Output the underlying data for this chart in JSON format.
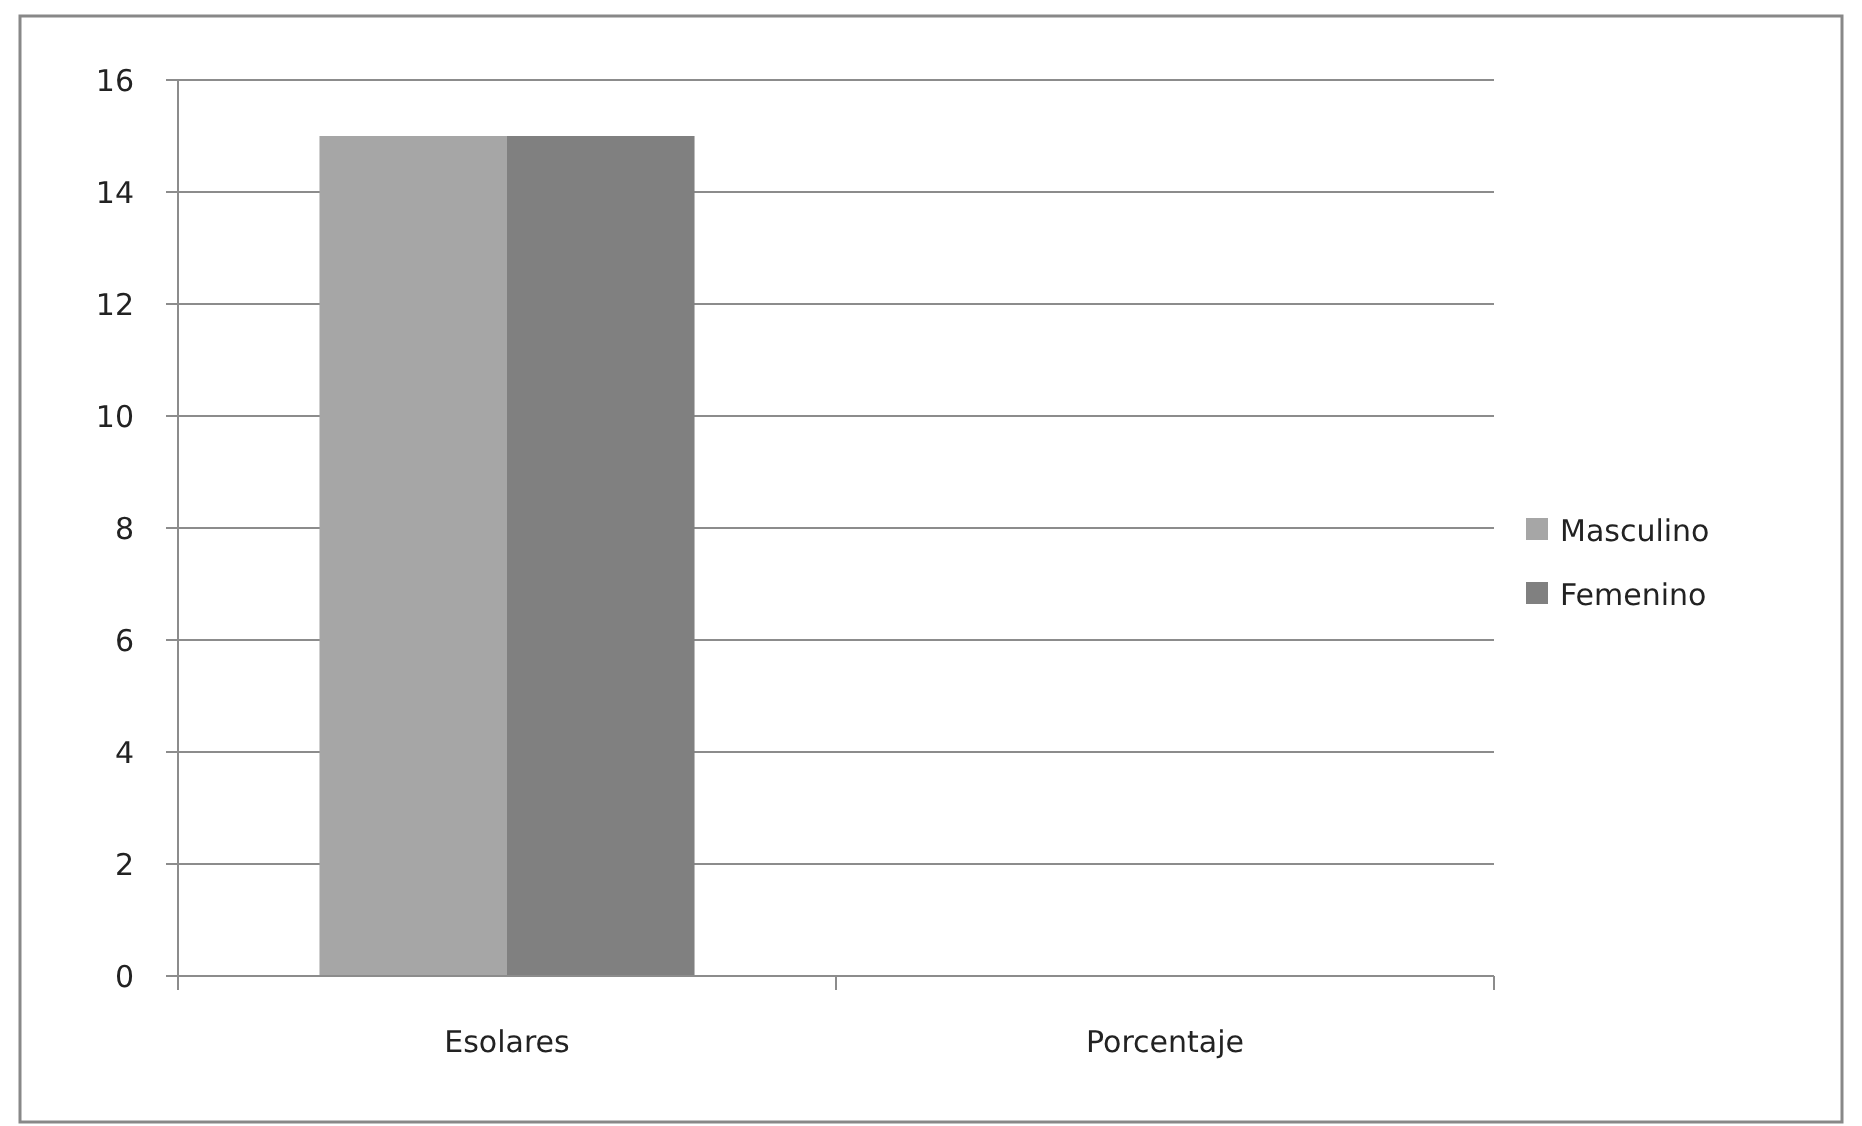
{
  "chart_data": {
    "type": "bar",
    "categories": [
      "Esolares",
      "Porcentaje"
    ],
    "series": [
      {
        "name": "Masculino",
        "color": "#a6a6a6",
        "values": [
          15,
          null
        ]
      },
      {
        "name": "Femenino",
        "color": "#808080",
        "values": [
          15,
          null
        ]
      }
    ],
    "ylim": [
      0,
      16
    ],
    "yticks": [
      0,
      2,
      4,
      6,
      8,
      10,
      12,
      14,
      16
    ],
    "grid": "y",
    "legend": "right"
  }
}
